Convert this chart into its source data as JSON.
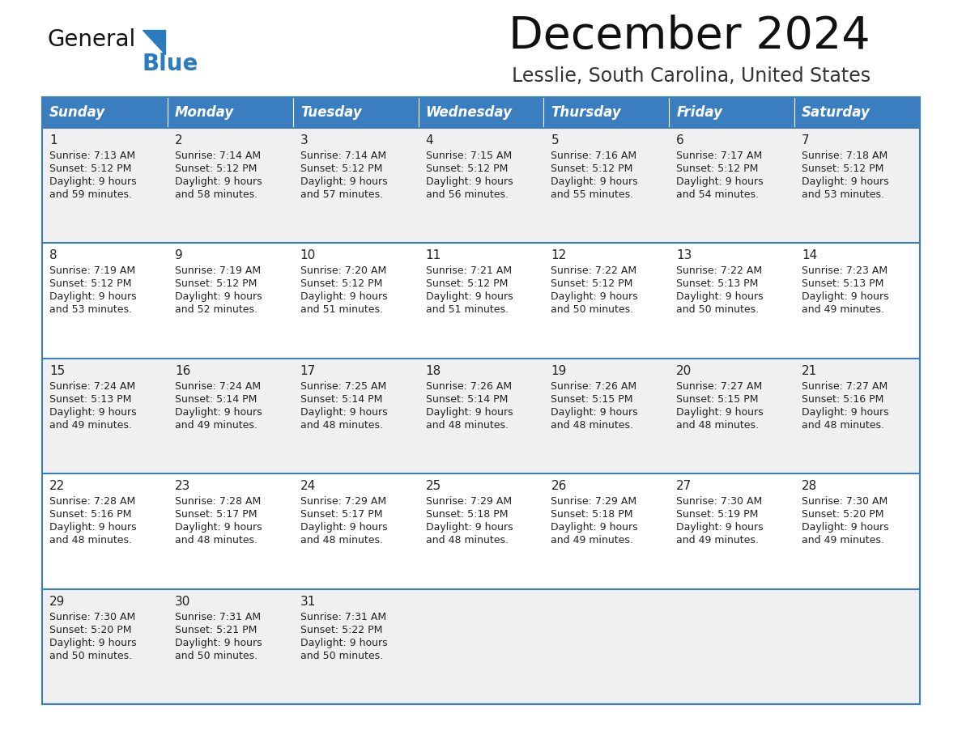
{
  "title": "December 2024",
  "subtitle": "Lesslie, South Carolina, United States",
  "header_bg": "#3A7EBF",
  "header_text_color": "#FFFFFF",
  "row_bg_odd": "#F0F0F0",
  "row_bg_even": "#FFFFFF",
  "separator_color": "#3A7EBF",
  "text_color": "#222222",
  "days_of_week": [
    "Sunday",
    "Monday",
    "Tuesday",
    "Wednesday",
    "Thursday",
    "Friday",
    "Saturday"
  ],
  "weeks": [
    [
      {
        "day": 1,
        "sunrise": "7:13 AM",
        "sunset": "5:12 PM",
        "daylight_hours": 9,
        "daylight_minutes": 59
      },
      {
        "day": 2,
        "sunrise": "7:14 AM",
        "sunset": "5:12 PM",
        "daylight_hours": 9,
        "daylight_minutes": 58
      },
      {
        "day": 3,
        "sunrise": "7:14 AM",
        "sunset": "5:12 PM",
        "daylight_hours": 9,
        "daylight_minutes": 57
      },
      {
        "day": 4,
        "sunrise": "7:15 AM",
        "sunset": "5:12 PM",
        "daylight_hours": 9,
        "daylight_minutes": 56
      },
      {
        "day": 5,
        "sunrise": "7:16 AM",
        "sunset": "5:12 PM",
        "daylight_hours": 9,
        "daylight_minutes": 55
      },
      {
        "day": 6,
        "sunrise": "7:17 AM",
        "sunset": "5:12 PM",
        "daylight_hours": 9,
        "daylight_minutes": 54
      },
      {
        "day": 7,
        "sunrise": "7:18 AM",
        "sunset": "5:12 PM",
        "daylight_hours": 9,
        "daylight_minutes": 53
      }
    ],
    [
      {
        "day": 8,
        "sunrise": "7:19 AM",
        "sunset": "5:12 PM",
        "daylight_hours": 9,
        "daylight_minutes": 53
      },
      {
        "day": 9,
        "sunrise": "7:19 AM",
        "sunset": "5:12 PM",
        "daylight_hours": 9,
        "daylight_minutes": 52
      },
      {
        "day": 10,
        "sunrise": "7:20 AM",
        "sunset": "5:12 PM",
        "daylight_hours": 9,
        "daylight_minutes": 51
      },
      {
        "day": 11,
        "sunrise": "7:21 AM",
        "sunset": "5:12 PM",
        "daylight_hours": 9,
        "daylight_minutes": 51
      },
      {
        "day": 12,
        "sunrise": "7:22 AM",
        "sunset": "5:12 PM",
        "daylight_hours": 9,
        "daylight_minutes": 50
      },
      {
        "day": 13,
        "sunrise": "7:22 AM",
        "sunset": "5:13 PM",
        "daylight_hours": 9,
        "daylight_minutes": 50
      },
      {
        "day": 14,
        "sunrise": "7:23 AM",
        "sunset": "5:13 PM",
        "daylight_hours": 9,
        "daylight_minutes": 49
      }
    ],
    [
      {
        "day": 15,
        "sunrise": "7:24 AM",
        "sunset": "5:13 PM",
        "daylight_hours": 9,
        "daylight_minutes": 49
      },
      {
        "day": 16,
        "sunrise": "7:24 AM",
        "sunset": "5:14 PM",
        "daylight_hours": 9,
        "daylight_minutes": 49
      },
      {
        "day": 17,
        "sunrise": "7:25 AM",
        "sunset": "5:14 PM",
        "daylight_hours": 9,
        "daylight_minutes": 48
      },
      {
        "day": 18,
        "sunrise": "7:26 AM",
        "sunset": "5:14 PM",
        "daylight_hours": 9,
        "daylight_minutes": 48
      },
      {
        "day": 19,
        "sunrise": "7:26 AM",
        "sunset": "5:15 PM",
        "daylight_hours": 9,
        "daylight_minutes": 48
      },
      {
        "day": 20,
        "sunrise": "7:27 AM",
        "sunset": "5:15 PM",
        "daylight_hours": 9,
        "daylight_minutes": 48
      },
      {
        "day": 21,
        "sunrise": "7:27 AM",
        "sunset": "5:16 PM",
        "daylight_hours": 9,
        "daylight_minutes": 48
      }
    ],
    [
      {
        "day": 22,
        "sunrise": "7:28 AM",
        "sunset": "5:16 PM",
        "daylight_hours": 9,
        "daylight_minutes": 48
      },
      {
        "day": 23,
        "sunrise": "7:28 AM",
        "sunset": "5:17 PM",
        "daylight_hours": 9,
        "daylight_minutes": 48
      },
      {
        "day": 24,
        "sunrise": "7:29 AM",
        "sunset": "5:17 PM",
        "daylight_hours": 9,
        "daylight_minutes": 48
      },
      {
        "day": 25,
        "sunrise": "7:29 AM",
        "sunset": "5:18 PM",
        "daylight_hours": 9,
        "daylight_minutes": 48
      },
      {
        "day": 26,
        "sunrise": "7:29 AM",
        "sunset": "5:18 PM",
        "daylight_hours": 9,
        "daylight_minutes": 49
      },
      {
        "day": 27,
        "sunrise": "7:30 AM",
        "sunset": "5:19 PM",
        "daylight_hours": 9,
        "daylight_minutes": 49
      },
      {
        "day": 28,
        "sunrise": "7:30 AM",
        "sunset": "5:20 PM",
        "daylight_hours": 9,
        "daylight_minutes": 49
      }
    ],
    [
      {
        "day": 29,
        "sunrise": "7:30 AM",
        "sunset": "5:20 PM",
        "daylight_hours": 9,
        "daylight_minutes": 50
      },
      {
        "day": 30,
        "sunrise": "7:31 AM",
        "sunset": "5:21 PM",
        "daylight_hours": 9,
        "daylight_minutes": 50
      },
      {
        "day": 31,
        "sunrise": "7:31 AM",
        "sunset": "5:22 PM",
        "daylight_hours": 9,
        "daylight_minutes": 50
      },
      null,
      null,
      null,
      null
    ]
  ],
  "logo_general_color": "#111111",
  "logo_blue_color": "#2B7BBD",
  "logo_triangle_color": "#2B7BBD",
  "fig_width": 11.88,
  "fig_height": 9.18,
  "dpi": 100
}
